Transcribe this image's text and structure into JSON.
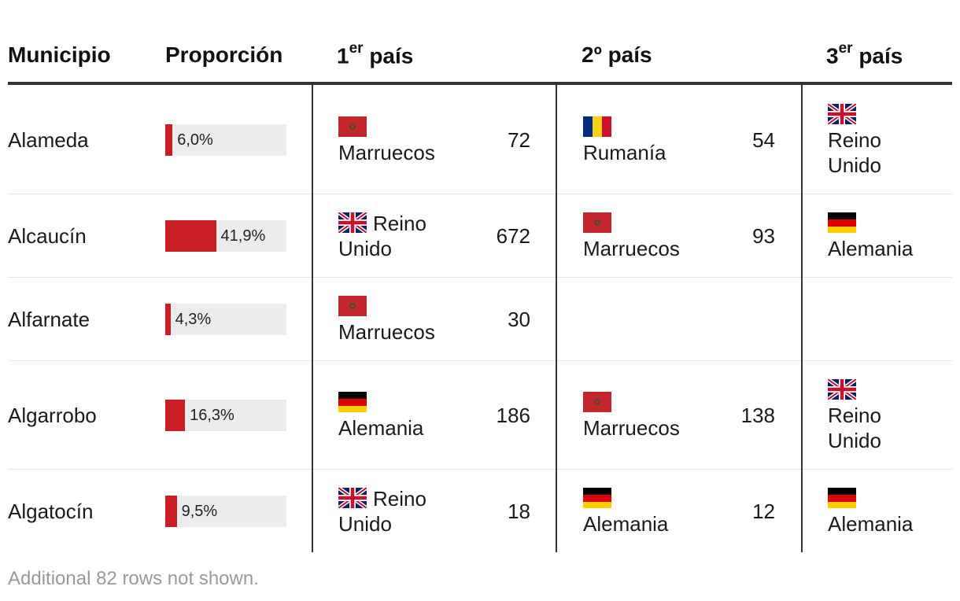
{
  "chart_data": {
    "type": "table",
    "columns": [
      "Municipio",
      "Proporción",
      "1er país",
      "2º país",
      "3er país"
    ],
    "rows": [
      {
        "municipio": "Alameda",
        "proporcion": 6.0,
        "proporcion_label": "6,0%",
        "p1": {
          "name": "Marruecos",
          "flag": "morocco-flag",
          "count": "72"
        },
        "p2": {
          "name": "Rumanía",
          "flag": "romania-flag",
          "count": "54"
        },
        "p3": {
          "name": "Reino Unido",
          "flag": "uk-flag"
        }
      },
      {
        "municipio": "Alcaucín",
        "proporcion": 41.9,
        "proporcion_label": "41,9%",
        "p1": {
          "name": "Reino Unido",
          "flag": "uk-flag",
          "count": "672"
        },
        "p2": {
          "name": "Marruecos",
          "flag": "morocco-flag",
          "count": "93"
        },
        "p3": {
          "name": "Alemania",
          "flag": "germany-flag"
        }
      },
      {
        "municipio": "Alfarnate",
        "proporcion": 4.3,
        "proporcion_label": "4,3%",
        "p1": {
          "name": "Marruecos",
          "flag": "morocco-flag",
          "count": "30"
        },
        "p2": null,
        "p3": null
      },
      {
        "municipio": "Algarrobo",
        "proporcion": 16.3,
        "proporcion_label": "16,3%",
        "p1": {
          "name": "Alemania",
          "flag": "germany-flag",
          "count": "186"
        },
        "p2": {
          "name": "Marruecos",
          "flag": "morocco-flag",
          "count": "138"
        },
        "p3": {
          "name": "Reino Unido",
          "flag": "uk-flag"
        }
      },
      {
        "municipio": "Algatocín",
        "proporcion": 9.5,
        "proporcion_label": "9,5%",
        "p1": {
          "name": "Reino Unido",
          "flag": "uk-flag",
          "count": "18"
        },
        "p2": {
          "name": "Alemania",
          "flag": "germany-flag",
          "count": "12"
        },
        "p3": {
          "name": "Alemania",
          "flag": "germany-flag"
        }
      }
    ],
    "bar_max": 100,
    "bar_color": "#c91f24",
    "bar_track_color": "#ececec"
  },
  "header": {
    "municipio": "Municipio",
    "proporcion": "Proporción",
    "pais1_num": "1",
    "pais1_sup": "er",
    "pais1_word": " país",
    "pais2": "2º país",
    "pais3_num": "3",
    "pais3_sup": "er",
    "pais3_word": " país"
  },
  "footnote": "Additional 82 rows not shown."
}
